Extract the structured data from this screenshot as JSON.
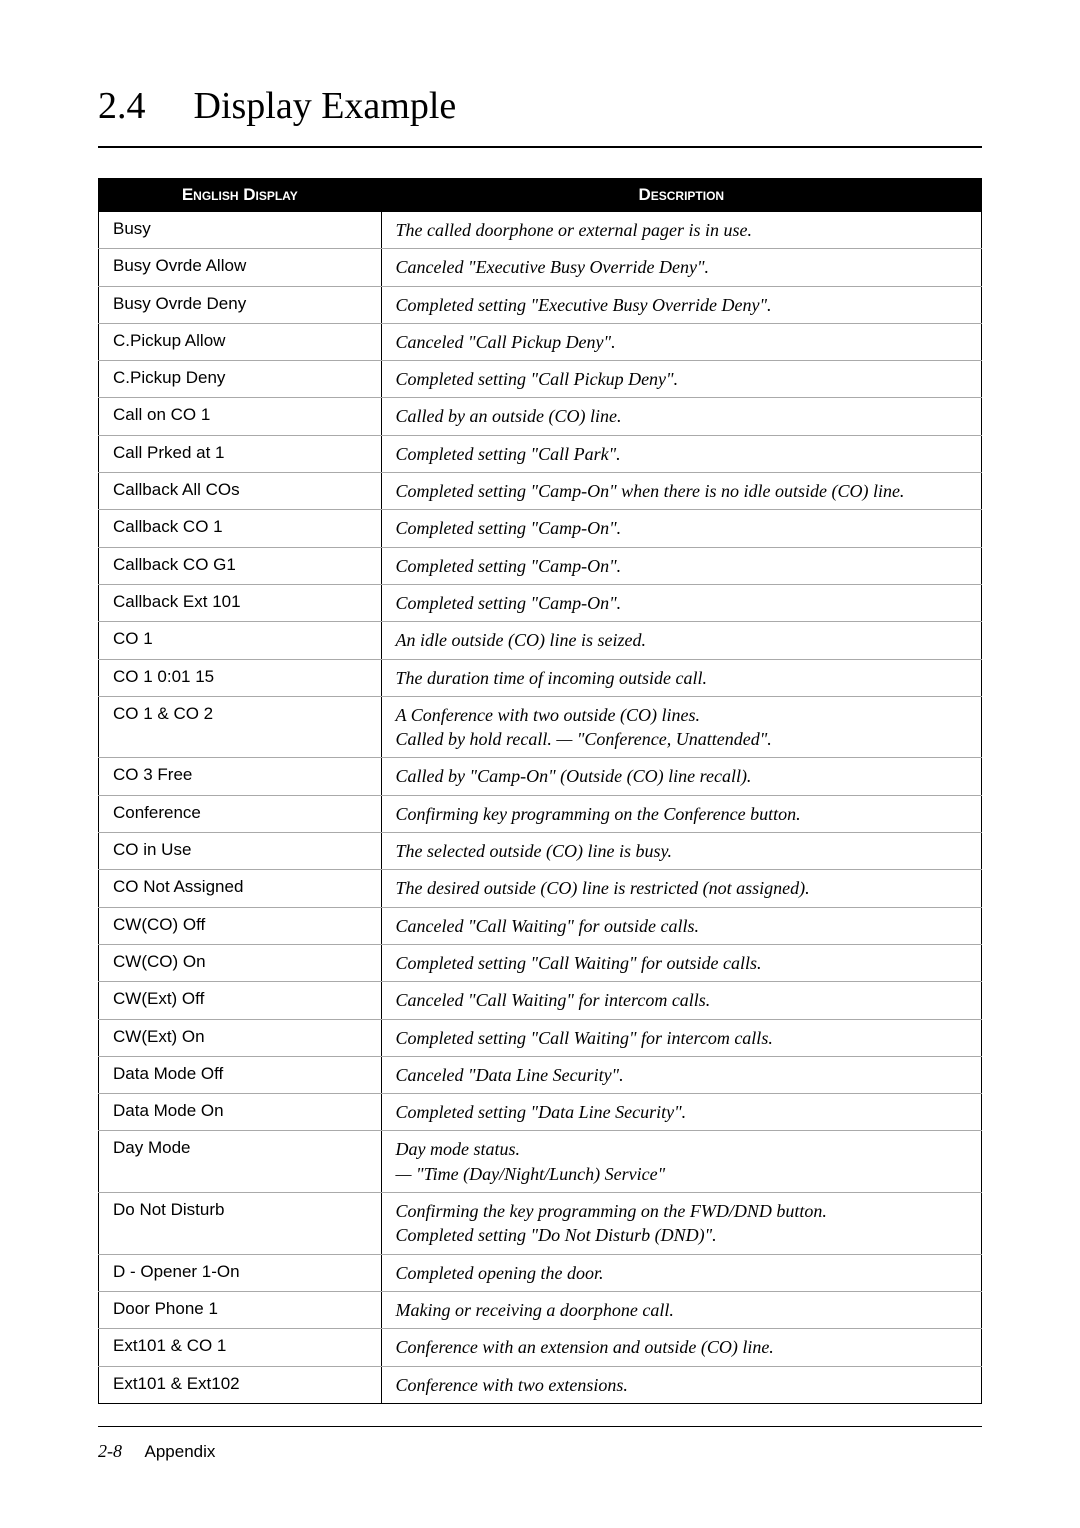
{
  "heading": {
    "number": "2.4",
    "title": "Display Example"
  },
  "table": {
    "headers": [
      "English Display",
      "Description"
    ],
    "rows": [
      [
        "Busy",
        "The called doorphone or external pager is in use."
      ],
      [
        "Busy Ovrde Allow",
        "Canceled \"Executive Busy Override Deny\"."
      ],
      [
        "Busy Ovrde Deny",
        "Completed setting \"Executive Busy Override Deny\"."
      ],
      [
        "C.Pickup Allow",
        "Canceled \"Call Pickup Deny\"."
      ],
      [
        "C.Pickup Deny",
        "Completed setting \"Call Pickup Deny\"."
      ],
      [
        "Call on CO 1",
        "Called by an outside (CO) line."
      ],
      [
        "Call Prked at  1",
        "Completed setting \"Call Park\"."
      ],
      [
        "Callback All COs",
        "Completed setting \"Camp-On\" when there is no idle outside (CO) line."
      ],
      [
        "Callback CO 1",
        "Completed setting \"Camp-On\"."
      ],
      [
        "Callback CO G1",
        "Completed setting \"Camp-On\"."
      ],
      [
        "Callback Ext 101",
        "Completed setting \"Camp-On\"."
      ],
      [
        "CO 1",
        "An idle outside (CO) line is seized."
      ],
      [
        "CO 1     0:01 15",
        "The duration time of incoming outside call."
      ],
      [
        "CO 1 & CO 2",
        "A Conference with two outside (CO) lines.\nCalled by hold recall. — \"Conference, Unattended\"."
      ],
      [
        "CO 3  Free",
        "Called by \"Camp-On\" (Outside (CO) line recall)."
      ],
      [
        "Conference",
        "Confirming key programming on the Conference button."
      ],
      [
        "CO in Use",
        "The selected outside (CO) line is busy."
      ],
      [
        "CO Not Assigned",
        "The desired outside (CO) line is restricted (not assigned)."
      ],
      [
        "CW(CO)  Off",
        "Canceled \"Call Waiting\" for outside calls."
      ],
      [
        "CW(CO)  On",
        "Completed setting \"Call Waiting\" for outside calls."
      ],
      [
        "CW(Ext) Off",
        "Canceled \"Call Waiting\" for intercom calls."
      ],
      [
        "CW(Ext) On",
        "Completed setting \"Call Waiting\" for intercom calls."
      ],
      [
        "Data Mode Off",
        "Canceled \"Data Line Security\"."
      ],
      [
        "Data Mode On",
        "Completed setting \"Data Line Security\"."
      ],
      [
        "Day   Mode",
        "Day mode status.\n— \"Time (Day/Night/Lunch) Service\""
      ],
      [
        "Do Not Disturb",
        "Confirming the key programming on the FWD/DND button.\nCompleted setting \"Do Not Disturb (DND)\"."
      ],
      [
        "D - Opener 1-On",
        "Completed opening the door."
      ],
      [
        "Door Phone    1",
        "Making or receiving a doorphone call."
      ],
      [
        "Ext101 & CO 1",
        "Conference with an extension and outside (CO) line."
      ],
      [
        "Ext101 & Ext102",
        "Conference with two extensions."
      ]
    ]
  },
  "footer": {
    "page": "2-8",
    "label": "Appendix"
  }
}
